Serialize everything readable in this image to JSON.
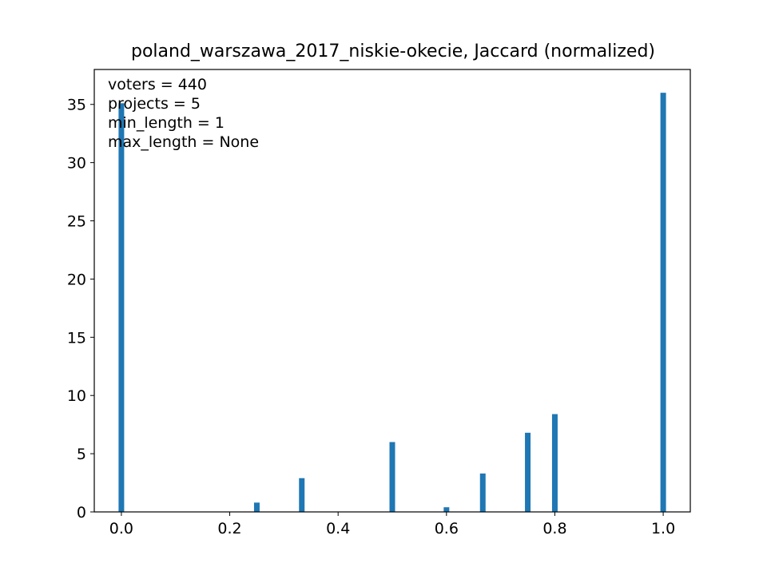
{
  "chart_data": {
    "type": "bar",
    "title": "poland_warszawa_2017_niskie-okecie, Jaccard (normalized)",
    "xlabel": "",
    "ylabel": "",
    "xlim": [
      -0.05,
      1.05
    ],
    "ylim": [
      0,
      38
    ],
    "x_ticks": [
      0.0,
      0.2,
      0.4,
      0.6,
      0.8,
      1.0
    ],
    "x_tick_labels": [
      "0.0",
      "0.2",
      "0.4",
      "0.6",
      "0.8",
      "1.0"
    ],
    "y_ticks": [
      0,
      5,
      10,
      15,
      20,
      25,
      30,
      35
    ],
    "y_tick_labels": [
      "0",
      "5",
      "10",
      "15",
      "20",
      "25",
      "30",
      "35"
    ],
    "grid": false,
    "bar_color": "#1f77b4",
    "x": [
      0.0,
      0.25,
      0.333,
      0.5,
      0.6,
      0.667,
      0.75,
      0.8,
      1.0
    ],
    "values": [
      35.1,
      0.8,
      2.9,
      6.0,
      0.4,
      3.3,
      6.8,
      8.4,
      36.0
    ],
    "annotations": [
      "voters = 440",
      "projects = 5",
      "min_length = 1",
      "max_length = None"
    ]
  }
}
